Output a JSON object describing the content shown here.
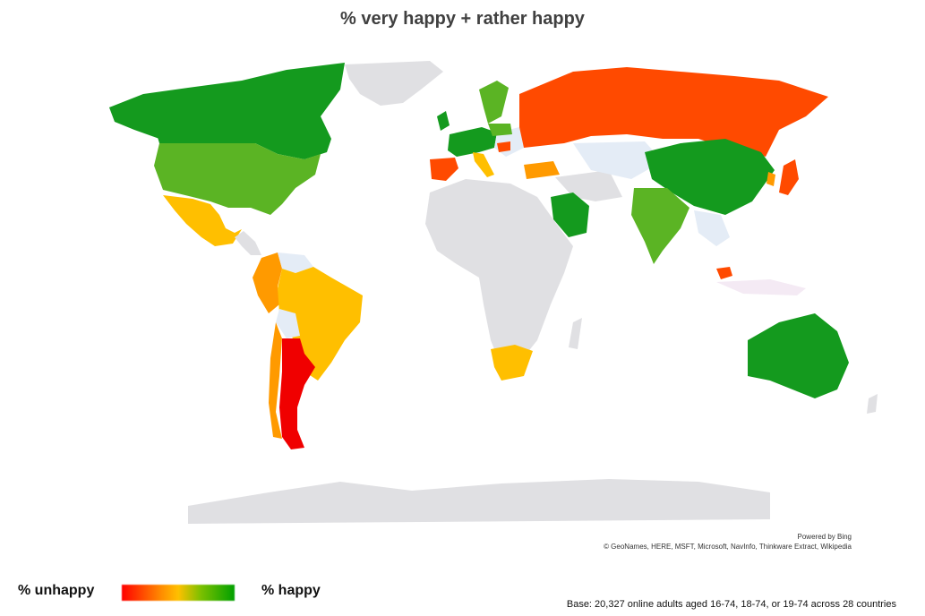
{
  "title": "% very happy + rather happy",
  "credits": {
    "powered": "Powered by Bing",
    "sources": "© GeoNames, HERE, MSFT, Microsoft, NavInfo, Thinkware Extract, Wikipedia"
  },
  "legend": {
    "low_label": "% unhappy",
    "high_label": "% happy",
    "colors": [
      "#ff0000",
      "#ff8c00",
      "#ffc000",
      "#7cc000",
      "#00a000"
    ]
  },
  "base_note": "Base: 20,327 online adults aged 16-74, 18-74, or 19-74 across 28 countries",
  "map_colors": {
    "no_data": "#e0e0e3",
    "green": "#149a1e",
    "light_green": "#5bb424",
    "yellow": "#ffbf00",
    "orange": "#ff9a00",
    "orange_red": "#ff4a00",
    "red": "#f00000",
    "pale_blue": "#e4ecf6"
  }
}
